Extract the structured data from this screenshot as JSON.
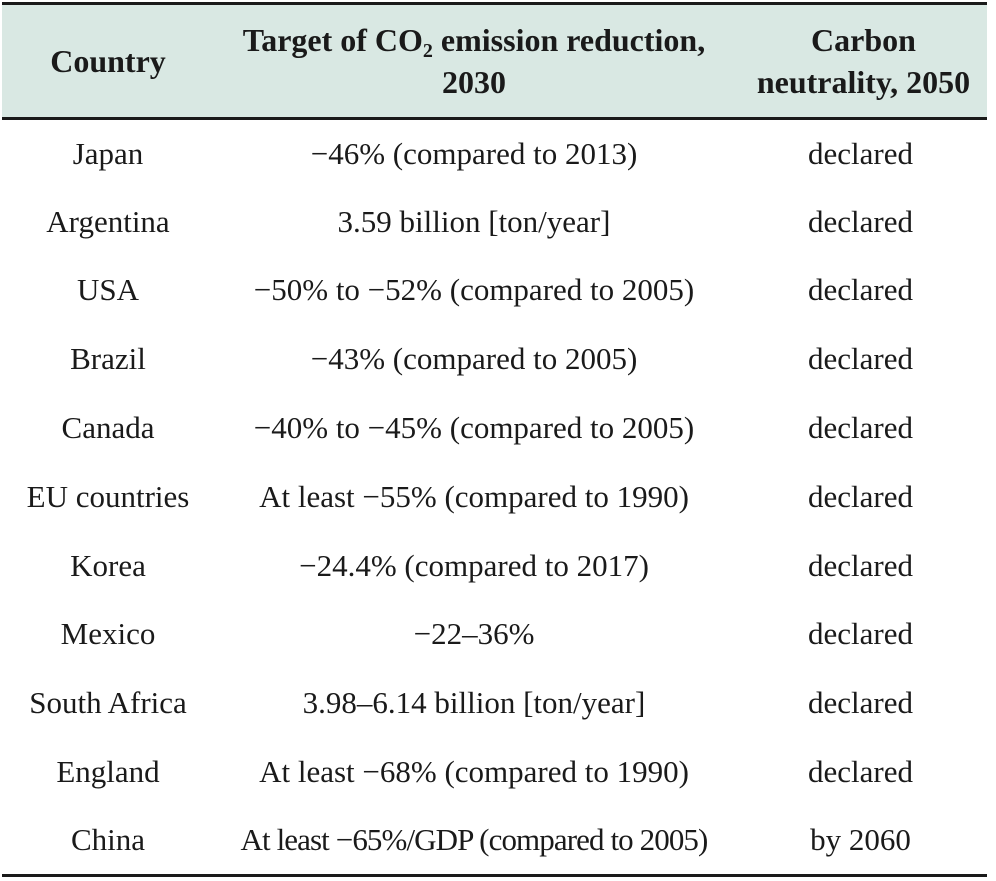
{
  "table": {
    "headers": {
      "country": "Country",
      "target_line1_pre": "Target of CO",
      "target_sub": "2",
      "target_line1_post": " emission reduction,",
      "target_line2": "2030",
      "neutral_line1": "Carbon",
      "neutral_line2": "neutrality, 2050"
    },
    "rows": [
      {
        "country": "Japan",
        "target": "−46% (compared to 2013)",
        "neutrality": "declared"
      },
      {
        "country": "Argentina",
        "target": "3.59 billion [ton/year]",
        "neutrality": "declared"
      },
      {
        "country": "USA",
        "target": "−50% to −52% (compared to 2005)",
        "neutrality": "declared"
      },
      {
        "country": "Brazil",
        "target": "−43% (compared to 2005)",
        "neutrality": "declared"
      },
      {
        "country": "Canada",
        "target": "−40% to −45% (compared to 2005)",
        "neutrality": "declared"
      },
      {
        "country": "EU countries",
        "target": "At least −55% (compared to 1990)",
        "neutrality": "declared"
      },
      {
        "country": "Korea",
        "target": "−24.4% (compared to 2017)",
        "neutrality": "declared"
      },
      {
        "country": "Mexico",
        "target": "−22–36%",
        "neutrality": "declared"
      },
      {
        "country": "South Africa",
        "target": "3.98–6.14 billion [ton/year]",
        "neutrality": "declared"
      },
      {
        "country": "England",
        "target": "At least −68% (compared to 1990)",
        "neutrality": "declared"
      },
      {
        "country": "China",
        "target": "At least −65%/GDP (compared to 2005)",
        "neutrality": "by 2060"
      }
    ]
  }
}
